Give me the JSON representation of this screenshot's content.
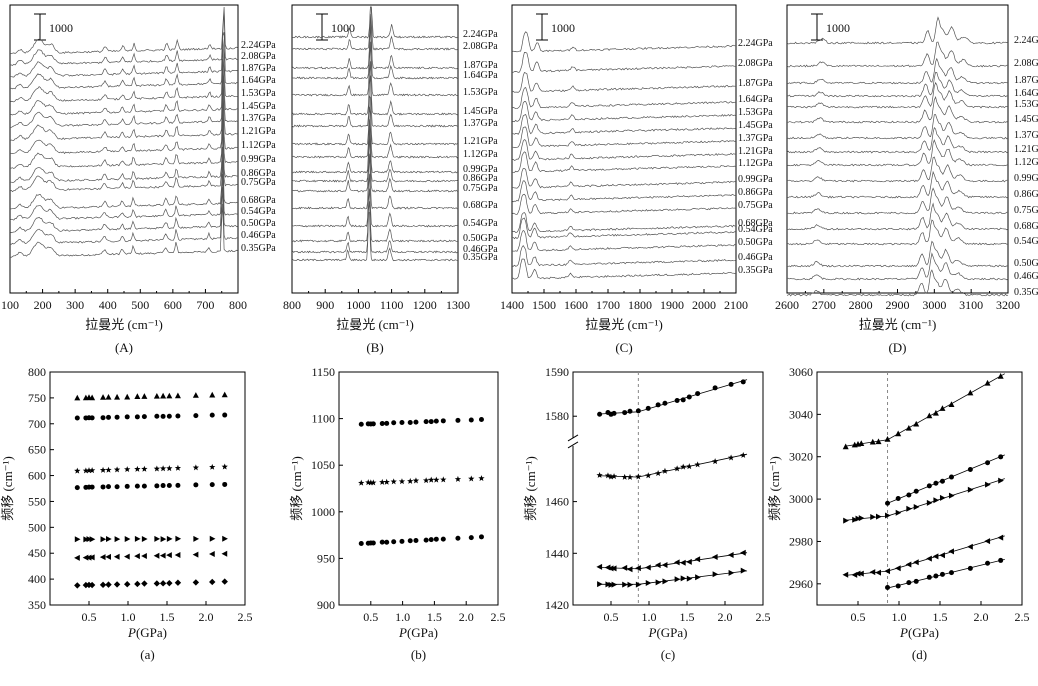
{
  "pressures": [
    "0.35GPa",
    "0.46GPa",
    "0.50GPa",
    "0.54GPa",
    "0.68GPa",
    "0.75GPa",
    "0.86GPa",
    "0.99GPa",
    "1.12GPa",
    "1.21GPa",
    "1.37GPa",
    "1.45GPa",
    "1.53GPa",
    "1.64GPa",
    "1.87GPa",
    "2.08GPa",
    "2.24GPa"
  ],
  "chart_data": [
    {
      "id": "A",
      "type": "line",
      "panel_label": "(A)",
      "xlabel": "拉曼光 (cm⁻¹)",
      "xlim": [
        100,
        800
      ],
      "xticks": [
        100,
        200,
        300,
        400,
        500,
        600,
        700,
        800
      ],
      "scalebar": "1000",
      "peaks": [
        {
          "x": 130,
          "h": 4,
          "w": 8
        },
        {
          "x": 188,
          "h": 14,
          "w": 16
        },
        {
          "x": 225,
          "h": 8,
          "w": 10
        },
        {
          "x": 390,
          "h": 5,
          "w": 5
        },
        {
          "x": 444,
          "h": 5,
          "w": 4
        },
        {
          "x": 478,
          "h": 8,
          "w": 3
        },
        {
          "x": 578,
          "h": 6,
          "w": 4
        },
        {
          "x": 610,
          "h": 10,
          "w": 3
        },
        {
          "x": 710,
          "h": 5,
          "w": 3
        },
        {
          "x": 752,
          "h": 60,
          "w": 2
        }
      ]
    },
    {
      "id": "B",
      "type": "line",
      "panel_label": "(B)",
      "xlabel": "拉曼光 (cm⁻¹)",
      "xlim": [
        800,
        1300
      ],
      "xticks": [
        800,
        900,
        1000,
        1100,
        1200,
        1300
      ],
      "scalebar": "1000",
      "peaks": [
        {
          "x": 968,
          "h": 10,
          "w": 3
        },
        {
          "x": 1032,
          "h": 55,
          "w": 2.5
        },
        {
          "x": 1094,
          "h": 12,
          "w": 4
        }
      ]
    },
    {
      "id": "C",
      "type": "line",
      "panel_label": "(C)",
      "xlabel": "拉曼光 (cm⁻¹)",
      "xlim": [
        1400,
        2100
      ],
      "xticks": [
        1400,
        1500,
        1600,
        1700,
        1800,
        1900,
        2000,
        2100
      ],
      "scalebar": "1000",
      "peaks": [
        {
          "x": 1430,
          "h": 16,
          "w": 5
        },
        {
          "x": 1440,
          "h": 16,
          "w": 5
        },
        {
          "x": 1470,
          "h": 9,
          "w": 6
        },
        {
          "x": 1582,
          "h": 4,
          "w": 5
        }
      ]
    },
    {
      "id": "D",
      "type": "line",
      "panel_label": "(D)",
      "xlabel": "拉曼光 (cm⁻¹)",
      "xlim": [
        2600,
        3200
      ],
      "xticks": [
        2600,
        2700,
        2800,
        2900,
        3000,
        3100,
        3200
      ],
      "scalebar": "1000",
      "peaks": [
        {
          "x": 2680,
          "h": 4,
          "w": 8
        },
        {
          "x": 2965,
          "h": 12,
          "w": 6
        },
        {
          "x": 2992,
          "h": 22,
          "w": 5
        },
        {
          "x": 3005,
          "h": 14,
          "w": 7
        },
        {
          "x": 3030,
          "h": 16,
          "w": 8
        },
        {
          "x": 3062,
          "h": 6,
          "w": 10
        }
      ]
    },
    {
      "id": "a",
      "type": "scatter",
      "panel_label": "(a)",
      "xlabel_italic": "P",
      "xlabel_rest": "(GPa)",
      "ylabel": "频移 (cm⁻¹)",
      "xlim": [
        0,
        2.5
      ],
      "ylim": [
        350,
        800
      ],
      "xticks": [
        0.5,
        1.0,
        1.5,
        2.0,
        2.5
      ],
      "yticks": [
        350,
        400,
        450,
        500,
        550,
        600,
        650,
        700,
        750,
        800
      ],
      "series": [
        {
          "marker": "diamond",
          "y0": 388,
          "y1": 395
        },
        {
          "marker": "triangle-left",
          "y0": 441,
          "y1": 449
        },
        {
          "marker": "triangle-right",
          "y0": 477,
          "y1": 478
        },
        {
          "marker": "circle",
          "y0": 577,
          "y1": 583
        },
        {
          "marker": "star",
          "y0": 609,
          "y1": 617
        },
        {
          "marker": "circle",
          "y0": 711,
          "y1": 717
        },
        {
          "marker": "triangle-up",
          "y0": 750,
          "y1": 756
        }
      ]
    },
    {
      "id": "b",
      "type": "scatter",
      "panel_label": "(b)",
      "xlabel_italic": "P",
      "xlabel_rest": "(GPa)",
      "ylabel": "频移 (cm⁻¹)",
      "xlim": [
        0,
        2.5
      ],
      "ylim": [
        900,
        1150
      ],
      "xticks": [
        0.5,
        1.0,
        1.5,
        2.0,
        2.5
      ],
      "yticks": [
        900,
        950,
        1000,
        1050,
        1100,
        1150
      ],
      "series": [
        {
          "marker": "circle",
          "y0": 966,
          "y1": 973
        },
        {
          "marker": "star",
          "y0": 1031,
          "y1": 1036
        },
        {
          "marker": "circle",
          "y0": 1094,
          "y1": 1099
        }
      ]
    },
    {
      "id": "c",
      "type": "scatter",
      "panel_label": "(c)",
      "xlabel_italic": "P",
      "xlabel_rest": "(GPa)",
      "ylabel": "频移 (cm⁻¹)",
      "xlim": [
        0,
        2.5
      ],
      "transition": 0.86,
      "xticks": [
        0.5,
        1.0,
        1.5,
        2.0,
        2.5
      ],
      "yticks": [
        1420,
        1440,
        1460,
        1580,
        1590
      ],
      "axis_break": true,
      "series": [
        {
          "marker": "triangle-right",
          "y0": 1428,
          "yt": 1428,
          "y1": 1433
        },
        {
          "marker": "triangle-left",
          "y0": 1434.5,
          "yt": 1434,
          "y1": 1440
        },
        {
          "marker": "star",
          "y0": 1470,
          "yt": 1469.5,
          "y1": 1478
        },
        {
          "marker": "circle",
          "y0": 1580.5,
          "yt": 1581,
          "y1": 1588
        }
      ]
    },
    {
      "id": "d",
      "type": "scatter",
      "panel_label": "(d)",
      "xlabel_italic": "P",
      "xlabel_rest": "(GPa)",
      "ylabel": "频移 (cm⁻¹)",
      "xlim": [
        0,
        2.5
      ],
      "ylim": [
        2950,
        3060
      ],
      "transition": 0.86,
      "xticks": [
        0.5,
        1.0,
        1.5,
        2.0,
        2.5
      ],
      "yticks": [
        2960,
        2980,
        3000,
        3020,
        3040,
        3060
      ],
      "series": [
        {
          "marker": "circle",
          "y0": null,
          "yt": 2958,
          "y1": 2971
        },
        {
          "marker": "triangle-left",
          "y0": 2964,
          "yt": 2966,
          "y1": 2982
        },
        {
          "marker": "triangle-right",
          "y0": 2990,
          "yt": 2992,
          "y1": 3009
        },
        {
          "marker": "circle",
          "y0": null,
          "yt": 2998,
          "y1": 3020
        },
        {
          "marker": "triangle-up",
          "y0": 3025,
          "yt": 3028,
          "y1": 3058
        }
      ]
    }
  ]
}
